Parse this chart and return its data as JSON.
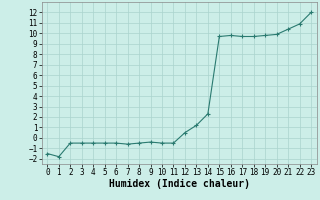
{
  "xlabel": "Humidex (Indice chaleur)",
  "ylabel": "",
  "x": [
    0,
    1,
    2,
    3,
    4,
    5,
    6,
    7,
    8,
    9,
    10,
    11,
    12,
    13,
    14,
    15,
    16,
    17,
    18,
    19,
    20,
    21,
    22,
    23
  ],
  "y": [
    -1.5,
    -1.8,
    -0.5,
    -0.5,
    -0.5,
    -0.5,
    -0.5,
    -0.6,
    -0.5,
    -0.4,
    -0.5,
    -0.5,
    0.5,
    1.2,
    2.3,
    9.7,
    9.8,
    9.7,
    9.7,
    9.8,
    9.9,
    10.4,
    10.9,
    12.0
  ],
  "line_color": "#2a7a70",
  "marker": "+",
  "bg_color": "#cceee8",
  "grid_color": "#aad4ce",
  "ylim": [
    -2.5,
    13.0
  ],
  "xlim": [
    -0.5,
    23.5
  ],
  "yticks": [
    -2,
    -1,
    0,
    1,
    2,
    3,
    4,
    5,
    6,
    7,
    8,
    9,
    10,
    11,
    12
  ],
  "xticks": [
    0,
    1,
    2,
    3,
    4,
    5,
    6,
    7,
    8,
    9,
    10,
    11,
    12,
    13,
    14,
    15,
    16,
    17,
    18,
    19,
    20,
    21,
    22,
    23
  ],
  "tick_fontsize": 5.5,
  "label_fontsize": 7,
  "linewidth": 0.8,
  "markersize": 3.0,
  "markeredgewidth": 0.8
}
